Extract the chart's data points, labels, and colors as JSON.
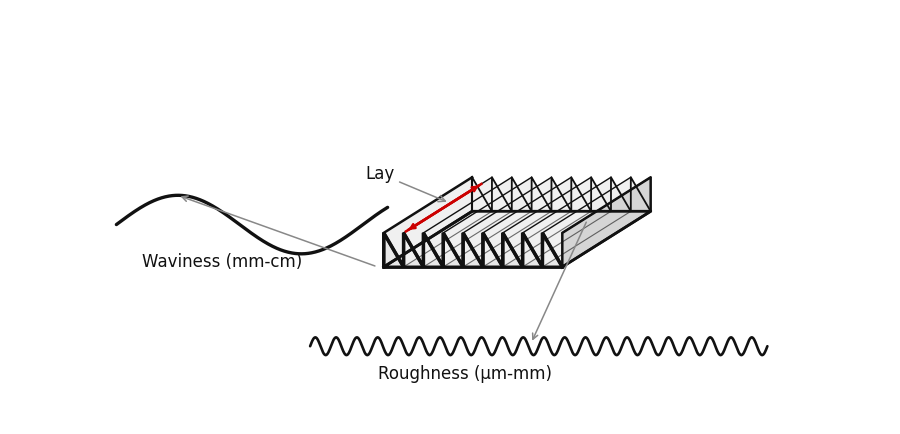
{
  "bg_color": "#ffffff",
  "line_color": "#111111",
  "red_color": "#cc0000",
  "gray_color": "#888888",
  "waviness_label": "Waviness (mm-cm)",
  "roughness_label": "Roughness (μm-mm)",
  "lay_label": "Lay",
  "label_fontsize": 12,
  "lay_fontsize": 12,
  "block_ox": 3.5,
  "block_oy": 1.55,
  "block_sx": 0.48,
  "block_sy": 0.3,
  "block_sz": 0.52,
  "block_skx": 0.32,
  "block_sky": 0.19,
  "BX": 4.8,
  "BY": 3.8,
  "BZ": 0.85,
  "N_RIDGES": 9
}
